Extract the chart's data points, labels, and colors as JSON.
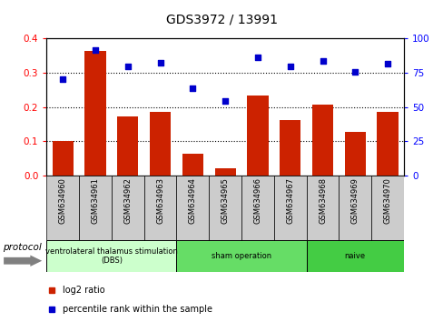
{
  "title": "GDS3972 / 13991",
  "samples": [
    "GSM634960",
    "GSM634961",
    "GSM634962",
    "GSM634963",
    "GSM634964",
    "GSM634965",
    "GSM634966",
    "GSM634967",
    "GSM634968",
    "GSM634969",
    "GSM634970"
  ],
  "log2_ratio": [
    0.101,
    0.365,
    0.172,
    0.185,
    0.063,
    0.02,
    0.233,
    0.163,
    0.208,
    0.128,
    0.187
  ],
  "percentile_rank": [
    70.5,
    91.5,
    80.0,
    82.5,
    64.0,
    54.5,
    86.5,
    80.0,
    84.0,
    75.5,
    82.0
  ],
  "bar_color": "#cc2200",
  "dot_color": "#0000cc",
  "ylim_left": [
    0,
    0.4
  ],
  "ylim_right": [
    0,
    100
  ],
  "yticks_left": [
    0,
    0.1,
    0.2,
    0.3,
    0.4
  ],
  "yticks_right": [
    0,
    25,
    50,
    75,
    100
  ],
  "groups": [
    {
      "label": "ventrolateral thalamus stimulation\n(DBS)",
      "start": 0,
      "end": 3,
      "color": "#ccffcc"
    },
    {
      "label": "sham operation",
      "start": 4,
      "end": 7,
      "color": "#66dd66"
    },
    {
      "label": "naive",
      "start": 8,
      "end": 10,
      "color": "#44cc44"
    }
  ],
  "protocol_label": "protocol",
  "legend_bar_label": "log2 ratio",
  "legend_dot_label": "percentile rank within the sample",
  "sample_box_color": "#cccccc",
  "plot_bg": "white"
}
